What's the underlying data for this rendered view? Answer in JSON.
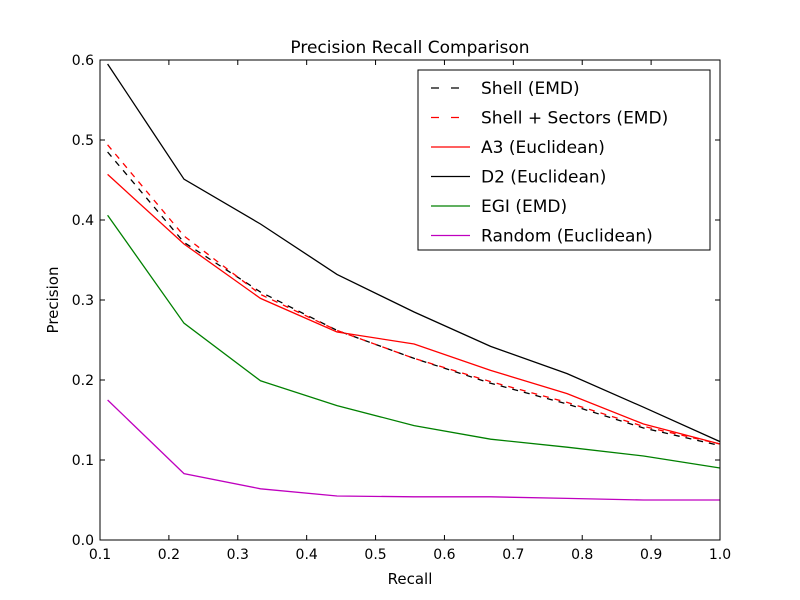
{
  "chart_data": {
    "type": "line",
    "title": "Precision Recall Comparison",
    "xlabel": "Recall",
    "ylabel": "Precision",
    "xlim": [
      0.1,
      1.0
    ],
    "ylim": [
      0.0,
      0.6
    ],
    "xticks": [
      0.1,
      0.2,
      0.3,
      0.4,
      0.5,
      0.6,
      0.7,
      0.8,
      0.9,
      1.0
    ],
    "yticks": [
      0.0,
      0.1,
      0.2,
      0.3,
      0.4,
      0.5,
      0.6
    ],
    "xtick_labels": [
      "0.1",
      "0.2",
      "0.3",
      "0.4",
      "0.5",
      "0.6",
      "0.7",
      "0.8",
      "0.9",
      "1.0"
    ],
    "ytick_labels": [
      "0.0",
      "0.1",
      "0.2",
      "0.3",
      "0.4",
      "0.5",
      "0.6"
    ],
    "grid": false,
    "legend_position": "top-right",
    "x": [
      0.111,
      0.222,
      0.333,
      0.444,
      0.556,
      0.667,
      0.778,
      0.889,
      1.0
    ],
    "series": [
      {
        "name": "Shell (EMD)",
        "color": "#000000",
        "dashed": true,
        "values": [
          0.485,
          0.372,
          0.31,
          0.262,
          0.227,
          0.196,
          0.17,
          0.14,
          0.118
        ]
      },
      {
        "name": "Shell + Sectors (EMD)",
        "color": "#ff0000",
        "dashed": true,
        "values": [
          0.494,
          0.38,
          0.307,
          0.262,
          0.227,
          0.198,
          0.172,
          0.142,
          0.12
        ]
      },
      {
        "name": "A3 (Euclidean)",
        "color": "#ff0000",
        "dashed": false,
        "values": [
          0.457,
          0.37,
          0.302,
          0.26,
          0.245,
          0.212,
          0.183,
          0.145,
          0.12
        ]
      },
      {
        "name": "D2 (Euclidean)",
        "color": "#000000",
        "dashed": false,
        "values": [
          0.595,
          0.451,
          0.395,
          0.332,
          0.285,
          0.242,
          0.208,
          0.166,
          0.123
        ]
      },
      {
        "name": "EGI (EMD)",
        "color": "#008000",
        "dashed": false,
        "values": [
          0.406,
          0.271,
          0.199,
          0.168,
          0.143,
          0.126,
          0.116,
          0.105,
          0.09
        ]
      },
      {
        "name": "Random (Euclidean)",
        "color": "#bf00bf",
        "dashed": false,
        "values": [
          0.175,
          0.083,
          0.064,
          0.055,
          0.054,
          0.054,
          0.052,
          0.05,
          0.05
        ]
      }
    ]
  }
}
